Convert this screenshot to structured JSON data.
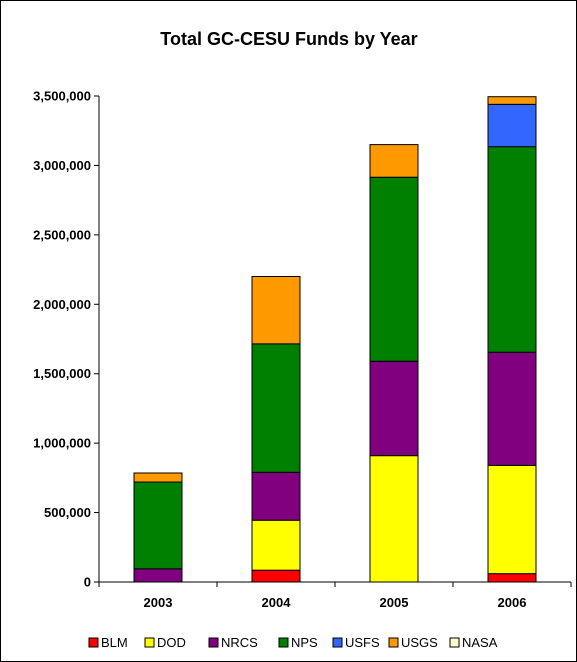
{
  "chart_data": {
    "type": "bar",
    "stacked": true,
    "title": "Total GC-CESU Funds by Year",
    "xlabel": "",
    "ylabel": "",
    "categories": [
      "2003",
      "2004",
      "2005",
      "2006"
    ],
    "ylim": [
      0,
      3500000
    ],
    "yticks": [
      0,
      500000,
      1000000,
      1500000,
      2000000,
      2500000,
      3000000,
      3500000
    ],
    "ytick_labels": [
      "0",
      "500,000",
      "1,000,000",
      "1,500,000",
      "2,000,000",
      "2,500,000",
      "3,000,000",
      "3,500,000"
    ],
    "grid": false,
    "legend_position": "bottom",
    "series": [
      {
        "name": "BLM",
        "color": "#ff0000",
        "values": [
          0,
          85000,
          0,
          60000
        ]
      },
      {
        "name": "DOD",
        "color": "#ffff00",
        "values": [
          0,
          360000,
          910000,
          780000
        ]
      },
      {
        "name": "NRCS",
        "color": "#800080",
        "values": [
          95000,
          345000,
          680000,
          815000
        ]
      },
      {
        "name": "NPS",
        "color": "#008000",
        "values": [
          625000,
          925000,
          1325000,
          1480000
        ]
      },
      {
        "name": "USFS",
        "color": "#3366ff",
        "values": [
          0,
          0,
          0,
          305000
        ]
      },
      {
        "name": "USGS",
        "color": "#ff9900",
        "values": [
          65000,
          485000,
          235000,
          55000
        ]
      },
      {
        "name": "NASA",
        "color": "#ffffcc",
        "values": [
          0,
          0,
          0,
          0
        ]
      }
    ]
  }
}
